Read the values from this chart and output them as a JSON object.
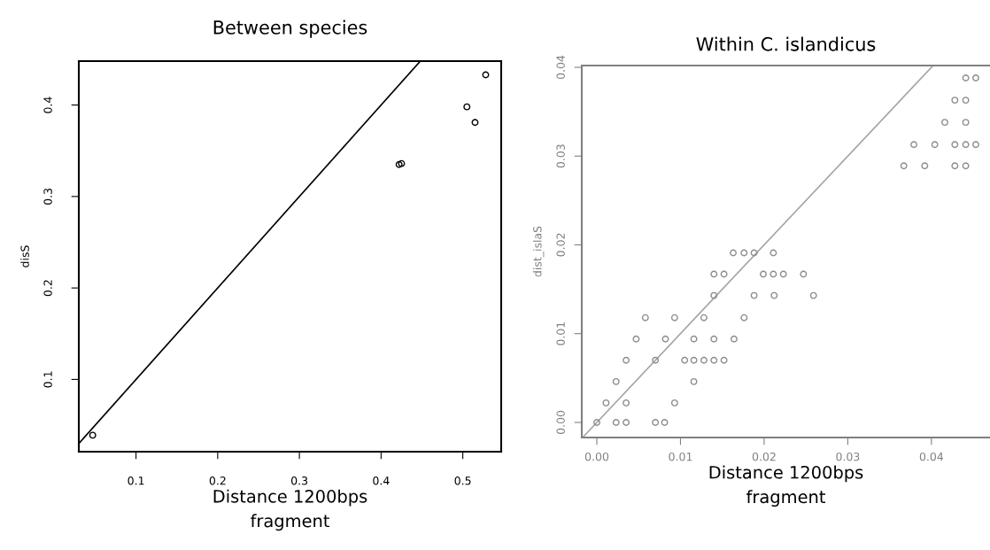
{
  "chart_data": [
    {
      "type": "scatter",
      "title": "Between species",
      "xlabel": "Distance 1200bps\nfragment",
      "ylabel": "disS",
      "xlim": [
        0.03,
        0.547
      ],
      "ylim": [
        0.021,
        0.448
      ],
      "xticks": [
        0.1,
        0.2,
        0.3,
        0.4,
        0.5
      ],
      "yticks": [
        0.1,
        0.2,
        0.3,
        0.4
      ],
      "grid": false,
      "legend": false,
      "series": [
        {
          "marker": "circle",
          "color": "#000000",
          "x": [
            0.047,
            0.422,
            0.425,
            0.505,
            0.515,
            0.528
          ],
          "values": [
            0.039,
            0.335,
            0.336,
            0.398,
            0.381,
            0.433
          ]
        },
        {
          "type": "line",
          "color": "#000000",
          "x": [
            0.03,
            0.448
          ],
          "values": [
            0.03,
            0.448
          ]
        }
      ]
    },
    {
      "type": "scatter",
      "title": "Within C. islandicus",
      "xlabel": "Distance 1200bps\nfragment",
      "ylabel": "dist_islaS",
      "xlim": [
        -0.0018,
        0.047
      ],
      "ylim": [
        -0.0017,
        0.0402
      ],
      "xticks": [
        {
          "value": 0,
          "label": "0.00"
        },
        {
          "value": 0.01,
          "label": "0.01"
        },
        {
          "value": 0.02,
          "label": "0.02"
        },
        {
          "value": 0.03,
          "label": "0.03"
        },
        {
          "value": 0.04,
          "label": "0.04"
        }
      ],
      "yticks": [
        {
          "value": 0,
          "label": "0.00"
        },
        {
          "value": 0.01,
          "label": "0.01"
        },
        {
          "value": 0.02,
          "label": "0.02"
        },
        {
          "value": 0.03,
          "label": "0.03"
        },
        {
          "value": 0.04,
          "label": "0.04"
        }
      ],
      "grid": false,
      "legend": false,
      "series": [
        {
          "marker": "circle",
          "color": "#8c8c8c",
          "x": [
            0.0,
            0.0023,
            0.0035,
            0.007,
            0.0081,
            0.0011,
            0.0035,
            0.0093,
            0.0023,
            0.0116,
            0.0035,
            0.007,
            0.0105,
            0.0116,
            0.0128,
            0.014,
            0.0152,
            0.0047,
            0.0082,
            0.0116,
            0.014,
            0.0164,
            0.0058,
            0.0093,
            0.0128,
            0.0176,
            0.014,
            0.0188,
            0.0212,
            0.0259,
            0.014,
            0.0152,
            0.0199,
            0.0211,
            0.0223,
            0.0247,
            0.0163,
            0.0176,
            0.0188,
            0.0211,
            0.0367,
            0.0392,
            0.0428,
            0.0441,
            0.0379,
            0.0404,
            0.0428,
            0.0441,
            0.0453,
            0.0416,
            0.0441,
            0.0428,
            0.0441,
            0.0441,
            0.0453
          ],
          "values": [
            0.0,
            0.0,
            0.0,
            0.0,
            0.0,
            0.0022,
            0.0022,
            0.0022,
            0.0046,
            0.0046,
            0.007,
            0.007,
            0.007,
            0.007,
            0.007,
            0.007,
            0.007,
            0.0094,
            0.0094,
            0.0094,
            0.0094,
            0.0094,
            0.0118,
            0.0118,
            0.0118,
            0.0118,
            0.0143,
            0.0143,
            0.0143,
            0.0143,
            0.0167,
            0.0167,
            0.0167,
            0.0167,
            0.0167,
            0.0167,
            0.0191,
            0.0191,
            0.0191,
            0.0191,
            0.0289,
            0.0289,
            0.0289,
            0.0289,
            0.0313,
            0.0313,
            0.0313,
            0.0313,
            0.0313,
            0.0338,
            0.0338,
            0.0363,
            0.0363,
            0.0388,
            0.0388
          ]
        },
        {
          "type": "line",
          "color": "#a6a6a6",
          "x": [
            -0.0017,
            0.0402
          ],
          "values": [
            -0.0017,
            0.0402
          ]
        }
      ]
    }
  ]
}
